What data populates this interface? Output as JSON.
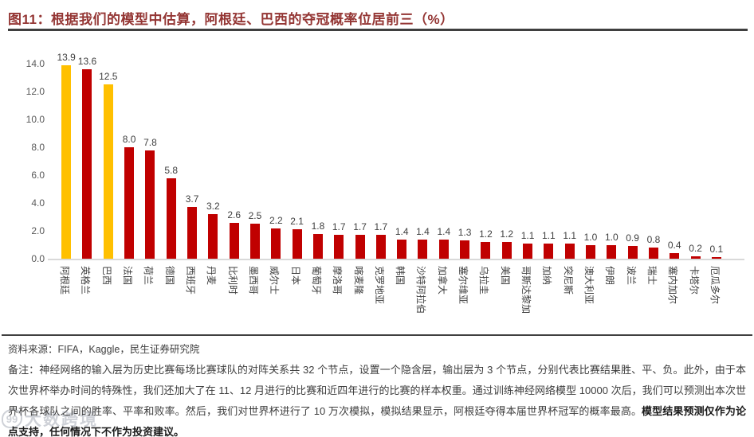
{
  "title": "图11：根据我们的模型中估算，阿根廷、巴西的夺冠概率位居前三（%）",
  "chart_data": {
    "type": "bar",
    "title": "图11：根据我们的模型中估算，阿根廷、巴西的夺冠概率位居前三（%）",
    "categories": [
      "阿根廷",
      "英格兰",
      "巴西",
      "法国",
      "荷兰",
      "德国",
      "西班牙",
      "丹麦",
      "比利时",
      "墨西哥",
      "威尔士",
      "日本",
      "葡萄牙",
      "摩洛哥",
      "喀麦隆",
      "克罗地亚",
      "韩国",
      "沙特阿拉伯",
      "加拿大",
      "塞尔维亚",
      "乌拉圭",
      "美国",
      "哥斯达黎加",
      "加纳",
      "突尼斯",
      "澳大利亚",
      "伊朗",
      "波兰",
      "瑞士",
      "塞内加尔",
      "卡塔尔",
      "厄瓜多尔"
    ],
    "values": [
      13.9,
      13.6,
      12.5,
      8.0,
      7.8,
      5.8,
      3.7,
      3.2,
      2.6,
      2.5,
      2.2,
      2.1,
      1.8,
      1.7,
      1.7,
      1.7,
      1.4,
      1.4,
      1.4,
      1.3,
      1.2,
      1.2,
      1.1,
      1.1,
      1.1,
      1.0,
      1.0,
      0.9,
      0.8,
      0.4,
      0.2,
      0.1
    ],
    "highlight_indices": [
      0,
      2
    ],
    "colors": {
      "bar": "#C00000",
      "highlight": "#FFC000",
      "axis_line": "#d9d9d9"
    },
    "xlabel": "",
    "ylabel": "",
    "ylim": [
      0,
      14
    ],
    "ytick_values": [
      0,
      2,
      4,
      6,
      8,
      10,
      12,
      14
    ],
    "grid": "off",
    "legend": "none",
    "data_labels": "on",
    "xlabel_rotation_deg": 90
  },
  "footer": {
    "source": "资料来源：FIFA，Kaggle，民生证券研究院",
    "note_normal": "备注：神经网络的输入层为历史比赛每场比赛球队的对阵关系共 32 个节点，设置一个隐含层，输出层为 3 个节点，分别代表比赛结果胜、平、负。此外，由于本次世界杯举办时间的特殊性，我们还加大了在 11、12 月进行的比赛和近四年进行的比赛的样本权重。通过训练神经网络模型 10000 次后，我们可以预测出本次世界杯各球队之间的胜率、平率和败率。然后，我们对世界杯进行了 10 万次模拟，模拟结果显示，阿根廷夺得本届世界杯冠军的概率最高。",
    "note_bold": "模型结果预测仅作为论点支持，任何情况下不作为投资建议。"
  },
  "watermark": {
    "logo": "99",
    "text": "大数跨境"
  }
}
